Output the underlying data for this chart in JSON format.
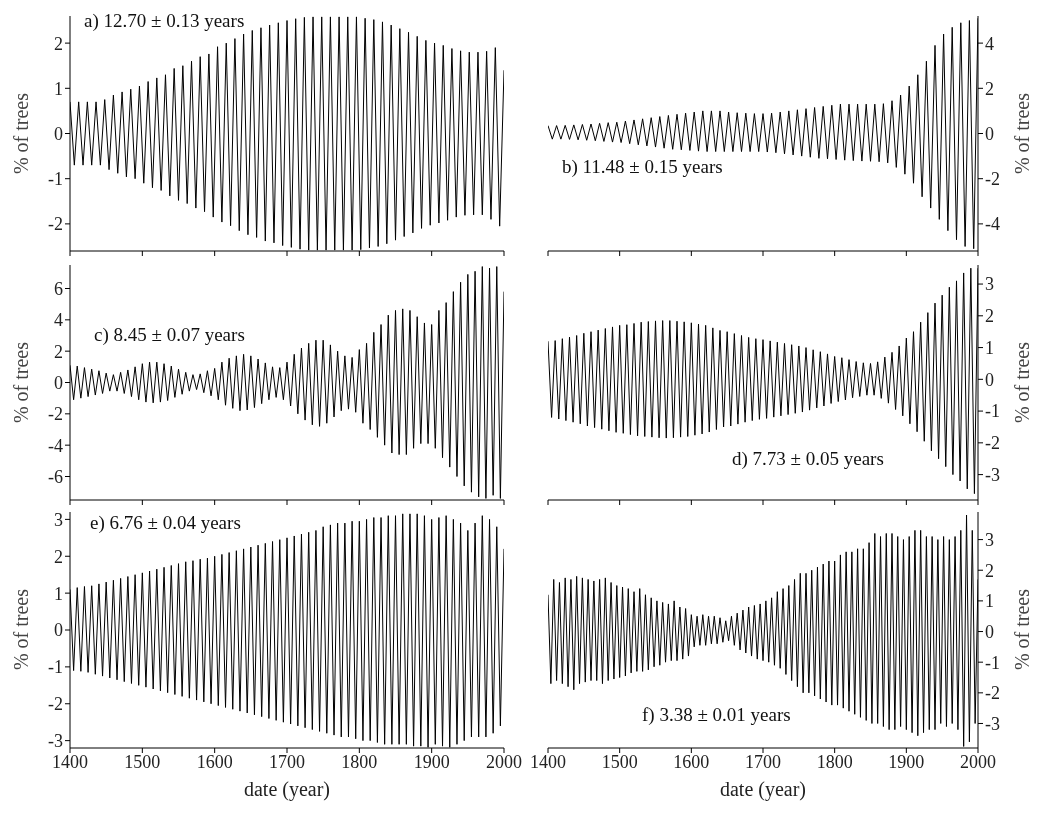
{
  "chart_data": [
    {
      "type": "line",
      "ylabel": "% of trees",
      "annotations": [
        "a) 12.70 ± 0.13 years"
      ],
      "xlim": [
        1400,
        2000
      ],
      "xticks": [
        1400,
        1500,
        1600,
        1700,
        1800,
        1900,
        2000
      ],
      "ylim": [
        -2.6,
        2.6
      ],
      "yticks": [
        -2,
        -1,
        0,
        1,
        2
      ],
      "tick_labels": "y",
      "x": [
        1400,
        1406,
        1412,
        1418,
        1424,
        1430,
        1436,
        1442,
        1448,
        1454,
        1460,
        1466,
        1472,
        1478,
        1484,
        1490,
        1496,
        1502,
        1508,
        1514,
        1520,
        1526,
        1532,
        1538,
        1544,
        1550,
        1556,
        1562,
        1568,
        1574,
        1580,
        1586,
        1592,
        1598,
        1604,
        1610,
        1616,
        1622,
        1628,
        1634,
        1640,
        1646,
        1652,
        1658,
        1664,
        1670,
        1676,
        1682,
        1688,
        1694,
        1700,
        1706,
        1712,
        1718,
        1724,
        1730,
        1736,
        1742,
        1748,
        1754,
        1760,
        1766,
        1772,
        1778,
        1784,
        1790,
        1796,
        1802,
        1808,
        1814,
        1820,
        1826,
        1832,
        1838,
        1844,
        1850,
        1856,
        1862,
        1868,
        1874,
        1880,
        1886,
        1892,
        1898,
        1904,
        1910,
        1916,
        1922,
        1928,
        1934,
        1940,
        1946,
        1952,
        1958,
        1964,
        1970,
        1976,
        1982,
        1988,
        1994,
        2000
      ],
      "series": [
        {
          "color": "#000000",
          "values": [
            0.7,
            -0.7,
            0.7,
            -0.7,
            0.7,
            -0.7,
            0.7,
            -0.7,
            0.75,
            -0.8,
            0.85,
            -0.88,
            0.92,
            -0.96,
            0.98,
            -1.0,
            1.05,
            -1.1,
            1.15,
            -1.2,
            1.23,
            -1.26,
            1.3,
            -1.38,
            1.44,
            -1.48,
            1.5,
            -1.55,
            1.6,
            -1.65,
            1.7,
            -1.73,
            1.76,
            -1.85,
            1.92,
            -1.96,
            2.0,
            -2.04,
            2.1,
            -2.15,
            2.2,
            -2.24,
            2.28,
            -2.3,
            2.34,
            -2.38,
            2.4,
            -2.42,
            2.45,
            -2.48,
            2.5,
            -2.52,
            2.54,
            -2.56,
            2.57,
            -2.58,
            2.58,
            -2.58,
            2.58,
            -2.58,
            2.58,
            -2.58,
            2.58,
            -2.58,
            2.58,
            -2.58,
            2.58,
            -2.57,
            2.55,
            -2.53,
            2.52,
            -2.5,
            2.47,
            -2.44,
            2.4,
            -2.36,
            2.32,
            -2.28,
            2.24,
            -2.2,
            2.15,
            -2.1,
            2.06,
            -2.03,
            2.0,
            -1.98,
            1.95,
            -1.92,
            1.88,
            -1.85,
            1.83,
            -1.81,
            1.8,
            -1.8,
            1.8,
            -1.8,
            1.82,
            -1.9,
            1.9,
            -2.05,
            1.4
          ]
        }
      ]
    },
    {
      "type": "line",
      "ylabel": "% of trees",
      "annotations": [
        "b) 11.48 ± 0.15 years"
      ],
      "xlim": [
        1400,
        2000
      ],
      "xticks": [
        1400,
        1500,
        1600,
        1700,
        1800,
        1900,
        2000
      ],
      "ylim": [
        -5.2,
        5.2
      ],
      "yticks": [
        -4,
        -2,
        0,
        2,
        4
      ],
      "tick_labels": "y",
      "x": [
        1400,
        1406,
        1412,
        1418,
        1424,
        1430,
        1436,
        1442,
        1448,
        1454,
        1460,
        1466,
        1472,
        1478,
        1484,
        1490,
        1496,
        1502,
        1508,
        1514,
        1520,
        1526,
        1532,
        1538,
        1544,
        1550,
        1556,
        1562,
        1568,
        1574,
        1580,
        1586,
        1592,
        1598,
        1604,
        1610,
        1616,
        1622,
        1628,
        1634,
        1640,
        1646,
        1652,
        1658,
        1664,
        1670,
        1676,
        1682,
        1688,
        1694,
        1700,
        1706,
        1712,
        1718,
        1724,
        1730,
        1736,
        1742,
        1748,
        1754,
        1760,
        1766,
        1772,
        1778,
        1784,
        1790,
        1796,
        1802,
        1808,
        1814,
        1820,
        1826,
        1832,
        1838,
        1844,
        1850,
        1856,
        1862,
        1868,
        1874,
        1880,
        1886,
        1892,
        1898,
        1904,
        1910,
        1916,
        1922,
        1928,
        1934,
        1940,
        1946,
        1952,
        1958,
        1964,
        1970,
        1976,
        1982,
        1988,
        1994,
        2000
      ],
      "series": [
        {
          "color": "#000000",
          "values": [
            0.35,
            -0.25,
            0.35,
            -0.25,
            0.36,
            -0.26,
            0.38,
            -0.28,
            0.4,
            -0.3,
            0.42,
            -0.32,
            0.45,
            -0.35,
            0.48,
            -0.38,
            0.5,
            -0.4,
            0.55,
            -0.45,
            0.6,
            -0.5,
            0.65,
            -0.55,
            0.7,
            -0.6,
            0.75,
            -0.65,
            0.8,
            -0.7,
            0.85,
            -0.72,
            0.9,
            -0.75,
            0.95,
            -0.78,
            1.0,
            -0.8,
            1.0,
            -0.8,
            1.0,
            -0.8,
            0.95,
            -0.8,
            0.92,
            -0.8,
            0.9,
            -0.8,
            0.88,
            -0.8,
            0.88,
            -0.82,
            0.9,
            -0.85,
            0.95,
            -0.9,
            1.0,
            -0.95,
            1.05,
            -1.0,
            1.1,
            -1.05,
            1.15,
            -1.1,
            1.2,
            -1.12,
            1.25,
            -1.15,
            1.3,
            -1.18,
            1.3,
            -1.2,
            1.3,
            -1.22,
            1.3,
            -1.23,
            1.3,
            -1.25,
            1.32,
            -1.3,
            1.45,
            -1.5,
            1.7,
            -1.8,
            2.1,
            -2.2,
            2.6,
            -2.8,
            3.2,
            -3.3,
            3.9,
            -3.8,
            4.4,
            -4.3,
            4.7,
            -4.7,
            4.9,
            -5.0,
            5.0,
            -5.1,
            5.1
          ]
        }
      ]
    },
    {
      "type": "line",
      "ylabel": "% of trees",
      "annotations": [
        "c) 8.45 ± 0.07 years"
      ],
      "xlim": [
        1400,
        2000
      ],
      "xticks": [
        1400,
        1500,
        1600,
        1700,
        1800,
        1900,
        2000
      ],
      "ylim": [
        -7.5,
        7.5
      ],
      "yticks": [
        -6,
        -4,
        -2,
        0,
        2,
        4,
        6
      ],
      "tick_labels": "y",
      "x": [
        1400,
        1405,
        1410,
        1415,
        1420,
        1425,
        1430,
        1435,
        1440,
        1445,
        1450,
        1455,
        1460,
        1465,
        1470,
        1475,
        1480,
        1485,
        1490,
        1495,
        1500,
        1505,
        1510,
        1515,
        1520,
        1525,
        1530,
        1535,
        1540,
        1545,
        1550,
        1555,
        1560,
        1565,
        1570,
        1575,
        1580,
        1585,
        1590,
        1595,
        1600,
        1605,
        1610,
        1615,
        1620,
        1625,
        1630,
        1635,
        1640,
        1645,
        1650,
        1655,
        1660,
        1665,
        1670,
        1675,
        1680,
        1685,
        1690,
        1695,
        1700,
        1705,
        1710,
        1715,
        1720,
        1725,
        1730,
        1735,
        1740,
        1745,
        1750,
        1755,
        1760,
        1765,
        1770,
        1775,
        1780,
        1785,
        1790,
        1795,
        1800,
        1805,
        1810,
        1815,
        1820,
        1825,
        1830,
        1835,
        1840,
        1845,
        1850,
        1855,
        1860,
        1865,
        1870,
        1875,
        1880,
        1885,
        1890,
        1895,
        1900,
        1905,
        1910,
        1915,
        1920,
        1925,
        1930,
        1935,
        1940,
        1945,
        1950,
        1955,
        1960,
        1965,
        1970,
        1975,
        1980,
        1985,
        1990,
        1995,
        2000
      ],
      "series": [
        {
          "color": "#000000",
          "values": [
            1.1,
            -1.1,
            1.05,
            -1.0,
            0.95,
            -0.9,
            0.85,
            -0.8,
            0.75,
            -0.7,
            0.6,
            -0.55,
            0.5,
            -0.55,
            0.65,
            -0.7,
            0.8,
            -0.9,
            1.0,
            -1.1,
            1.2,
            -1.25,
            1.3,
            -1.3,
            1.3,
            -1.25,
            1.2,
            -1.15,
            1.05,
            -0.95,
            0.85,
            -0.75,
            0.65,
            -0.55,
            0.5,
            -0.45,
            0.55,
            -0.65,
            0.75,
            -0.85,
            0.9,
            -1.1,
            1.3,
            -1.45,
            1.55,
            -1.65,
            1.7,
            -1.8,
            1.8,
            -1.75,
            1.7,
            -1.6,
            1.5,
            -1.35,
            1.25,
            -1.1,
            1.0,
            -0.95,
            0.95,
            -1.1,
            1.3,
            -1.5,
            1.8,
            -2.0,
            2.2,
            -2.4,
            2.5,
            -2.7,
            2.7,
            -2.8,
            2.7,
            -2.6,
            2.4,
            -2.2,
            2.0,
            -1.8,
            1.7,
            -1.7,
            1.6,
            -1.9,
            2.1,
            -2.6,
            2.5,
            -3.0,
            3.2,
            -3.5,
            3.7,
            -4.0,
            4.3,
            -4.5,
            4.6,
            -4.6,
            4.7,
            -4.6,
            4.6,
            -4.2,
            4.2,
            -3.9,
            3.8,
            -3.9,
            3.7,
            -4.2,
            4.6,
            -4.8,
            5.1,
            -5.4,
            5.8,
            -6.0,
            6.4,
            -6.6,
            6.9,
            -7.0,
            7.1,
            -7.3,
            7.4,
            -7.4,
            7.3,
            -7.2,
            7.4,
            -7.4,
            5.8
          ]
        }
      ]
    },
    {
      "type": "line",
      "ylabel": "% of trees",
      "annotations": [
        "d) 7.73 ± 0.05 years"
      ],
      "xlim": [
        1400,
        2000
      ],
      "xticks": [
        1400,
        1500,
        1600,
        1700,
        1800,
        1900,
        2000
      ],
      "ylim": [
        -3.8,
        3.6
      ],
      "yticks": [
        -3,
        -2,
        -1,
        0,
        1,
        2,
        3
      ],
      "tick_labels": "y",
      "x": [
        1400,
        1405,
        1410,
        1415,
        1420,
        1425,
        1430,
        1435,
        1440,
        1445,
        1450,
        1455,
        1460,
        1465,
        1470,
        1475,
        1480,
        1485,
        1490,
        1495,
        1500,
        1505,
        1510,
        1515,
        1520,
        1525,
        1530,
        1535,
        1540,
        1545,
        1550,
        1555,
        1560,
        1565,
        1570,
        1575,
        1580,
        1585,
        1590,
        1595,
        1600,
        1605,
        1610,
        1615,
        1620,
        1625,
        1630,
        1635,
        1640,
        1645,
        1650,
        1655,
        1660,
        1665,
        1670,
        1675,
        1680,
        1685,
        1690,
        1695,
        1700,
        1705,
        1710,
        1715,
        1720,
        1725,
        1730,
        1735,
        1740,
        1745,
        1750,
        1755,
        1760,
        1765,
        1770,
        1775,
        1780,
        1785,
        1790,
        1795,
        1800,
        1805,
        1810,
        1815,
        1820,
        1825,
        1830,
        1835,
        1840,
        1845,
        1850,
        1855,
        1860,
        1865,
        1870,
        1875,
        1880,
        1885,
        1890,
        1895,
        1900,
        1905,
        1910,
        1915,
        1920,
        1925,
        1930,
        1935,
        1940,
        1945,
        1950,
        1955,
        1960,
        1965,
        1970,
        1975,
        1980,
        1985,
        1990,
        1995,
        2000
      ],
      "series": [
        {
          "color": "#000000",
          "values": [
            1.2,
            -1.2,
            1.22,
            -1.25,
            1.28,
            -1.3,
            1.33,
            -1.35,
            1.38,
            -1.4,
            1.45,
            -1.47,
            1.5,
            -1.52,
            1.55,
            -1.57,
            1.6,
            -1.62,
            1.65,
            -1.67,
            1.7,
            -1.7,
            1.72,
            -1.74,
            1.76,
            -1.78,
            1.8,
            -1.8,
            1.82,
            -1.82,
            1.84,
            -1.84,
            1.85,
            -1.85,
            1.85,
            -1.84,
            1.83,
            -1.82,
            1.81,
            -1.8,
            1.78,
            -1.76,
            1.74,
            -1.72,
            1.7,
            -1.66,
            1.62,
            -1.58,
            1.54,
            -1.5,
            1.5,
            -1.47,
            1.44,
            -1.41,
            1.38,
            -1.35,
            1.32,
            -1.3,
            1.28,
            -1.26,
            1.25,
            -1.23,
            1.21,
            -1.19,
            1.17,
            -1.15,
            1.13,
            -1.11,
            1.09,
            -1.07,
            1.05,
            -1.03,
            1.0,
            -0.97,
            0.93,
            -0.9,
            0.87,
            -0.84,
            0.8,
            -0.76,
            0.72,
            -0.7,
            0.68,
            -0.65,
            0.62,
            -0.58,
            0.56,
            -0.54,
            0.52,
            -0.5,
            0.5,
            -0.5,
            0.55,
            -0.6,
            0.7,
            -0.75,
            0.85,
            -0.95,
            1.05,
            -1.15,
            1.3,
            -1.4,
            1.5,
            -1.65,
            1.8,
            -1.95,
            2.1,
            -2.25,
            2.4,
            -2.5,
            2.65,
            -2.75,
            2.9,
            -3.0,
            3.1,
            -3.2,
            3.35,
            -3.45,
            3.5,
            -3.6,
            3.5
          ]
        }
      ]
    },
    {
      "type": "line",
      "xlabel": "date (year)",
      "ylabel": "% of trees",
      "annotations": [
        "e) 6.76 ± 0.04 years"
      ],
      "xlim": [
        1400,
        2000
      ],
      "xticks": [
        1400,
        1500,
        1600,
        1700,
        1800,
        1900,
        2000
      ],
      "ylim": [
        -3.2,
        3.2
      ],
      "yticks": [
        -3,
        -2,
        -1,
        0,
        1,
        2,
        3
      ],
      "x": [
        1400,
        1405,
        1410,
        1415,
        1420,
        1425,
        1430,
        1435,
        1440,
        1445,
        1450,
        1455,
        1460,
        1465,
        1470,
        1475,
        1480,
        1485,
        1490,
        1495,
        1500,
        1505,
        1510,
        1515,
        1520,
        1525,
        1530,
        1535,
        1540,
        1545,
        1550,
        1555,
        1560,
        1565,
        1570,
        1575,
        1580,
        1585,
        1590,
        1595,
        1600,
        1605,
        1610,
        1615,
        1620,
        1625,
        1630,
        1635,
        1640,
        1645,
        1650,
        1655,
        1660,
        1665,
        1670,
        1675,
        1680,
        1685,
        1690,
        1695,
        1700,
        1705,
        1710,
        1715,
        1720,
        1725,
        1730,
        1735,
        1740,
        1745,
        1750,
        1755,
        1760,
        1765,
        1770,
        1775,
        1780,
        1785,
        1790,
        1795,
        1800,
        1805,
        1810,
        1815,
        1820,
        1825,
        1830,
        1835,
        1840,
        1845,
        1850,
        1855,
        1860,
        1865,
        1870,
        1875,
        1880,
        1885,
        1890,
        1895,
        1900,
        1905,
        1910,
        1915,
        1920,
        1925,
        1930,
        1935,
        1940,
        1945,
        1950,
        1955,
        1960,
        1965,
        1970,
        1975,
        1980,
        1985,
        1990,
        1995,
        2000
      ],
      "series": [
        {
          "color": "#000000",
          "values": [
            1.1,
            -1.1,
            1.15,
            -1.12,
            1.18,
            -1.15,
            1.2,
            -1.2,
            1.25,
            -1.25,
            1.3,
            -1.3,
            1.35,
            -1.35,
            1.4,
            -1.4,
            1.45,
            -1.45,
            1.5,
            -1.5,
            1.55,
            -1.55,
            1.6,
            -1.6,
            1.65,
            -1.65,
            1.7,
            -1.7,
            1.75,
            -1.75,
            1.8,
            -1.8,
            1.85,
            -1.85,
            1.88,
            -1.9,
            1.92,
            -1.95,
            1.95,
            -2.0,
            2.0,
            -2.05,
            2.05,
            -2.1,
            2.1,
            -2.15,
            2.15,
            -2.2,
            2.2,
            -2.25,
            2.25,
            -2.3,
            2.3,
            -2.35,
            2.35,
            -2.4,
            2.4,
            -2.45,
            2.45,
            -2.5,
            2.5,
            -2.55,
            2.55,
            -2.6,
            2.6,
            -2.65,
            2.65,
            -2.7,
            2.7,
            -2.75,
            2.8,
            -2.8,
            2.85,
            -2.85,
            2.9,
            -2.9,
            2.9,
            -2.9,
            2.95,
            -2.95,
            2.95,
            -3.0,
            3.0,
            -3.0,
            3.05,
            -3.05,
            3.05,
            -3.1,
            3.1,
            -3.1,
            3.1,
            -3.1,
            3.15,
            -3.1,
            3.15,
            -3.15,
            3.15,
            -3.15,
            3.1,
            -3.18,
            3.0,
            -3.1,
            3.05,
            -3.15,
            3.1,
            -3.18,
            3.0,
            -3.1,
            2.9,
            -3.0,
            2.7,
            -2.9,
            2.9,
            -2.9,
            3.1,
            -2.9,
            3.0,
            -2.8,
            2.8,
            -2.6,
            2.2
          ]
        }
      ]
    },
    {
      "type": "line",
      "xlabel": "date (year)",
      "ylabel": "% of trees",
      "annotations": [
        "f) 3.38 ± 0.01 years"
      ],
      "xlim": [
        1400,
        2000
      ],
      "xticks": [
        1400,
        1500,
        1600,
        1700,
        1800,
        1900,
        2000
      ],
      "ylim": [
        -3.8,
        3.9
      ],
      "yticks": [
        -3,
        -2,
        -1,
        0,
        1,
        2,
        3
      ],
      "x": [
        1400,
        1404,
        1408,
        1412,
        1416,
        1420,
        1424,
        1428,
        1432,
        1436,
        1440,
        1444,
        1448,
        1452,
        1456,
        1460,
        1464,
        1468,
        1472,
        1476,
        1480,
        1484,
        1488,
        1492,
        1496,
        1500,
        1504,
        1508,
        1512,
        1516,
        1520,
        1524,
        1528,
        1532,
        1536,
        1540,
        1544,
        1548,
        1552,
        1556,
        1560,
        1564,
        1568,
        1572,
        1576,
        1580,
        1584,
        1588,
        1592,
        1596,
        1600,
        1604,
        1608,
        1612,
        1616,
        1620,
        1624,
        1628,
        1632,
        1636,
        1640,
        1644,
        1648,
        1652,
        1656,
        1660,
        1664,
        1668,
        1672,
        1676,
        1680,
        1684,
        1688,
        1692,
        1696,
        1700,
        1704,
        1708,
        1712,
        1716,
        1720,
        1724,
        1728,
        1732,
        1736,
        1740,
        1744,
        1748,
        1752,
        1756,
        1760,
        1764,
        1768,
        1772,
        1776,
        1780,
        1784,
        1788,
        1792,
        1796,
        1800,
        1804,
        1808,
        1812,
        1816,
        1820,
        1824,
        1828,
        1832,
        1836,
        1840,
        1844,
        1848,
        1852,
        1856,
        1860,
        1864,
        1868,
        1872,
        1876,
        1880,
        1884,
        1888,
        1892,
        1896,
        1900,
        1904,
        1908,
        1912,
        1916,
        1920,
        1924,
        1928,
        1932,
        1936,
        1940,
        1944,
        1948,
        1952,
        1956,
        1960,
        1964,
        1968,
        1972,
        1976,
        1980,
        1984,
        1988,
        1992,
        1996,
        2000
      ],
      "series": [
        {
          "color": "#000000",
          "values": [
            1.2,
            -1.7,
            1.7,
            -1.6,
            1.6,
            -1.7,
            1.75,
            -1.8,
            1.7,
            -1.9,
            1.8,
            -1.7,
            1.75,
            -1.65,
            1.7,
            -1.6,
            1.65,
            -1.6,
            1.7,
            -1.7,
            1.75,
            -1.6,
            1.6,
            -1.55,
            1.5,
            -1.5,
            1.45,
            -1.45,
            1.4,
            -1.35,
            1.3,
            -1.3,
            1.4,
            -1.3,
            1.2,
            -1.25,
            1.1,
            -1.15,
            1.0,
            -1.1,
            0.95,
            -1.0,
            0.9,
            -0.95,
            1.0,
            -0.95,
            0.8,
            -0.9,
            0.75,
            -0.8,
            0.55,
            -0.5,
            0.5,
            -0.45,
            0.55,
            -0.45,
            0.5,
            -0.4,
            0.5,
            -0.4,
            0.45,
            -0.35,
            0.35,
            -0.3,
            0.5,
            -0.45,
            0.6,
            -0.6,
            0.7,
            -0.7,
            0.8,
            -0.8,
            0.85,
            -0.9,
            0.9,
            -0.95,
            1.0,
            -1.0,
            1.1,
            -1.1,
            1.3,
            -1.2,
            1.4,
            -1.4,
            1.5,
            -1.6,
            1.7,
            -1.8,
            1.9,
            -2.0,
            1.9,
            -2.0,
            2.0,
            -2.1,
            2.1,
            -2.2,
            2.2,
            -2.3,
            2.3,
            -2.4,
            2.3,
            -2.4,
            2.5,
            -2.5,
            2.6,
            -2.6,
            2.6,
            -2.7,
            2.7,
            -2.8,
            2.7,
            -2.9,
            2.9,
            -3.0,
            3.2,
            -3.0,
            3.1,
            -3.1,
            3.2,
            -3.2,
            3.2,
            -3.2,
            3.1,
            -3.1,
            3.0,
            -3.2,
            3.1,
            -3.3,
            3.3,
            -3.4,
            3.3,
            -3.3,
            3.1,
            -3.2,
            3.1,
            -3.2,
            3.0,
            -3.0,
            3.1,
            -3.1,
            3.0,
            -3.0,
            3.1,
            -3.2,
            3.3,
            -3.75,
            3.8,
            -3.6,
            3.3,
            -3.0,
            1.7
          ]
        }
      ]
    }
  ]
}
